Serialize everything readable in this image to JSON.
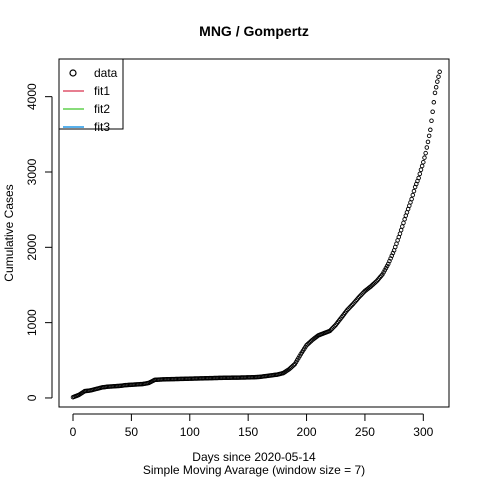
{
  "chart_data": {
    "type": "scatter",
    "title": "MNG / Gompertz",
    "xlabel": "Days since 2020-05-14",
    "xlabel2": "Simple Moving Avarage (window size = 7)",
    "ylabel": "Cumulative Cases",
    "xlim": [
      -12,
      322
    ],
    "ylim": [
      -120,
      4500
    ],
    "xticks": [
      0,
      50,
      100,
      150,
      200,
      250,
      300
    ],
    "yticks": [
      0,
      1000,
      2000,
      3000,
      4000
    ],
    "grid": false,
    "legend": {
      "position": "top-left",
      "entries": [
        {
          "label": "data",
          "symbol": "circle",
          "color": "#000000"
        },
        {
          "label": "fit1",
          "symbol": "line",
          "color": "#DF536B"
        },
        {
          "label": "fit2",
          "symbol": "line",
          "color": "#61D04F"
        },
        {
          "label": "fit3",
          "symbol": "line",
          "color": "#2297E6"
        }
      ]
    },
    "series": [
      {
        "name": "data",
        "marker": "open-circle",
        "color": "#000000",
        "points": [
          [
            0,
            10
          ],
          [
            5,
            40
          ],
          [
            10,
            90
          ],
          [
            15,
            100
          ],
          [
            20,
            120
          ],
          [
            25,
            140
          ],
          [
            30,
            150
          ],
          [
            35,
            155
          ],
          [
            40,
            160
          ],
          [
            45,
            170
          ],
          [
            50,
            175
          ],
          [
            55,
            180
          ],
          [
            60,
            185
          ],
          [
            65,
            200
          ],
          [
            70,
            240
          ],
          [
            75,
            245
          ],
          [
            80,
            248
          ],
          [
            85,
            250
          ],
          [
            90,
            252
          ],
          [
            95,
            254
          ],
          [
            100,
            256
          ],
          [
            105,
            258
          ],
          [
            110,
            260
          ],
          [
            115,
            262
          ],
          [
            120,
            264
          ],
          [
            125,
            266
          ],
          [
            130,
            268
          ],
          [
            135,
            269
          ],
          [
            140,
            270
          ],
          [
            145,
            271
          ],
          [
            150,
            273
          ],
          [
            155,
            275
          ],
          [
            160,
            280
          ],
          [
            165,
            290
          ],
          [
            170,
            300
          ],
          [
            175,
            310
          ],
          [
            180,
            330
          ],
          [
            185,
            380
          ],
          [
            190,
            450
          ],
          [
            195,
            580
          ],
          [
            200,
            700
          ],
          [
            205,
            770
          ],
          [
            210,
            830
          ],
          [
            215,
            860
          ],
          [
            220,
            890
          ],
          [
            225,
            970
          ],
          [
            230,
            1070
          ],
          [
            235,
            1170
          ],
          [
            240,
            1250
          ],
          [
            245,
            1340
          ],
          [
            250,
            1420
          ],
          [
            255,
            1480
          ],
          [
            260,
            1550
          ],
          [
            265,
            1640
          ],
          [
            270,
            1780
          ],
          [
            275,
            1960
          ],
          [
            280,
            2180
          ],
          [
            285,
            2420
          ],
          [
            290,
            2640
          ],
          [
            293,
            2800
          ],
          [
            296,
            2920
          ],
          [
            298,
            3030
          ],
          [
            300,
            3130
          ],
          [
            302,
            3250
          ],
          [
            304,
            3400
          ],
          [
            306,
            3560
          ],
          [
            308,
            3800
          ],
          [
            310,
            4050
          ],
          [
            312,
            4200
          ],
          [
            314,
            4330
          ]
        ]
      }
    ]
  }
}
